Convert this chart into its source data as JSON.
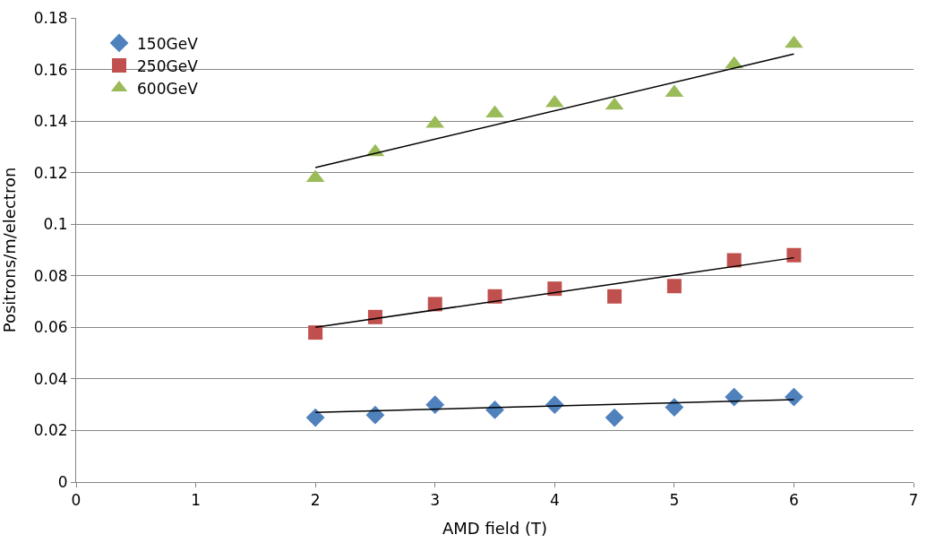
{
  "chart_data": {
    "type": "scatter",
    "xlabel": "AMD field (T)",
    "ylabel": "Positrons/m/electron",
    "x": [
      2,
      2.5,
      3,
      3.5,
      4,
      4.5,
      5,
      5.5,
      6
    ],
    "series": [
      {
        "name": "150GeV",
        "color": "#4f81bd",
        "marker": "diamond",
        "values": [
          0.025,
          0.026,
          0.03,
          0.028,
          0.03,
          0.025,
          0.029,
          0.033,
          0.033
        ]
      },
      {
        "name": "250GeV",
        "color": "#c0504d",
        "marker": "square",
        "values": [
          0.058,
          0.064,
          0.069,
          0.072,
          0.075,
          0.072,
          0.076,
          0.086,
          0.088
        ]
      },
      {
        "name": "600GeV",
        "color": "#9bbb59",
        "marker": "triangle",
        "values": [
          0.118,
          0.128,
          0.139,
          0.143,
          0.147,
          0.146,
          0.151,
          0.162,
          0.17
        ]
      },
      {
        "type": "line",
        "color": "#000000",
        "values": [
          0.027,
          null,
          null,
          null,
          null,
          null,
          null,
          null,
          0.032
        ]
      },
      {
        "type": "line",
        "color": "#000000",
        "values": [
          0.06,
          null,
          null,
          null,
          null,
          null,
          null,
          null,
          0.087
        ]
      },
      {
        "type": "line",
        "color": "#000000",
        "values": [
          0.122,
          null,
          null,
          null,
          null,
          null,
          null,
          null,
          0.166
        ]
      }
    ],
    "xlim": [
      0,
      7
    ],
    "xticks": [
      0,
      1,
      2,
      3,
      4,
      5,
      6,
      7
    ],
    "ylim": [
      0,
      0.18
    ],
    "yticks": [
      0,
      0.02,
      0.04,
      0.06,
      0.08,
      0.1,
      0.12,
      0.14,
      0.16,
      0.18
    ],
    "grid": "y",
    "legend": "top left"
  }
}
